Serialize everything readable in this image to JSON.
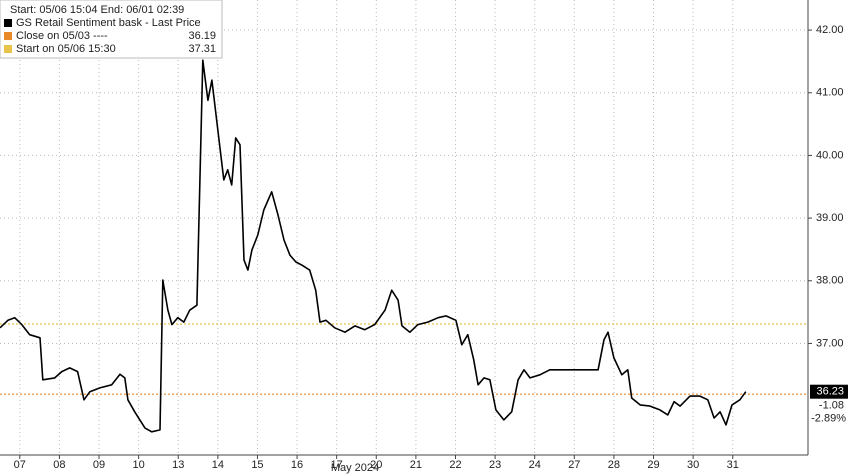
{
  "chart_data": {
    "type": "line",
    "subtitle": "Start: 05/06 15:04 End: 06/01 02:39",
    "x_label": "May 2024",
    "xlim": [
      -0.5,
      19.9
    ],
    "xticks": [
      {
        "value": 0,
        "label": "07"
      },
      {
        "value": 1,
        "label": "08"
      },
      {
        "value": 2,
        "label": "09"
      },
      {
        "value": 3,
        "label": "10"
      },
      {
        "value": 4,
        "label": "13"
      },
      {
        "value": 5,
        "label": "14"
      },
      {
        "value": 6,
        "label": "15"
      },
      {
        "value": 7,
        "label": "16"
      },
      {
        "value": 8,
        "label": "17"
      },
      {
        "value": 9,
        "label": "20"
      },
      {
        "value": 10,
        "label": "21"
      },
      {
        "value": 11,
        "label": "22"
      },
      {
        "value": 12,
        "label": "23"
      },
      {
        "value": 13,
        "label": "24"
      },
      {
        "value": 14,
        "label": "27"
      },
      {
        "value": 15,
        "label": "28"
      },
      {
        "value": 16,
        "label": "29"
      },
      {
        "value": 17,
        "label": "30"
      },
      {
        "value": 18,
        "label": "31"
      }
    ],
    "ylim": [
      35.22,
      42.48
    ],
    "yticks": [
      {
        "value": 37,
        "label": "37.00"
      },
      {
        "value": 38,
        "label": "38.00"
      },
      {
        "value": 39,
        "label": "39.00"
      },
      {
        "value": 40,
        "label": "40.00"
      },
      {
        "value": 41,
        "label": "41.00"
      },
      {
        "value": 42,
        "label": "42.00"
      }
    ],
    "grid": true,
    "series": [
      {
        "name": "GS Retail Sentiment bask - Last Price",
        "color": "#000000",
        "x": [
          -0.5,
          -0.3,
          -0.13,
          0.05,
          0.25,
          0.51,
          0.58,
          0.88,
          1.06,
          1.26,
          1.46,
          1.62,
          1.77,
          2.02,
          2.32,
          2.53,
          2.65,
          2.73,
          2.9,
          3.16,
          3.33,
          3.54,
          3.61,
          3.74,
          3.84,
          3.99,
          4.14,
          4.29,
          4.47,
          4.62,
          4.75,
          4.85,
          5.0,
          5.15,
          5.25,
          5.35,
          5.45,
          5.56,
          5.66,
          5.76,
          5.86,
          6.01,
          6.16,
          6.36,
          6.52,
          6.67,
          6.82,
          6.97,
          7.12,
          7.32,
          7.47,
          7.58,
          7.73,
          7.95,
          8.21,
          8.46,
          8.71,
          8.96,
          9.22,
          9.39,
          9.55,
          9.65,
          9.85,
          10.05,
          10.3,
          10.56,
          10.76,
          11.01,
          11.16,
          11.31,
          11.46,
          11.57,
          11.72,
          11.87,
          12.02,
          12.22,
          12.42,
          12.58,
          12.73,
          12.88,
          13.13,
          13.38,
          13.64,
          14.14,
          14.6,
          14.75,
          14.85,
          15.0,
          15.2,
          15.35,
          15.45,
          15.66,
          15.91,
          16.16,
          16.36,
          16.52,
          16.67,
          16.92,
          17.17,
          17.37,
          17.53,
          17.68,
          17.83,
          17.98,
          18.18,
          18.33
        ],
        "values": [
          37.25,
          37.37,
          37.41,
          37.3,
          37.14,
          37.09,
          36.42,
          36.45,
          36.55,
          36.61,
          36.55,
          36.1,
          36.23,
          36.29,
          36.34,
          36.51,
          36.45,
          36.1,
          35.91,
          35.65,
          35.59,
          35.62,
          38.01,
          37.53,
          37.3,
          37.41,
          37.34,
          37.53,
          37.61,
          41.52,
          40.88,
          41.2,
          40.41,
          39.61,
          39.77,
          39.53,
          40.28,
          40.17,
          38.33,
          38.17,
          38.49,
          38.73,
          39.13,
          39.42,
          39.05,
          38.65,
          38.41,
          38.3,
          38.25,
          38.17,
          37.85,
          37.34,
          37.37,
          37.25,
          37.18,
          37.28,
          37.22,
          37.3,
          37.53,
          37.85,
          37.69,
          37.28,
          37.18,
          37.3,
          37.34,
          37.41,
          37.44,
          37.37,
          36.98,
          37.14,
          36.74,
          36.34,
          36.45,
          36.42,
          35.94,
          35.78,
          35.91,
          36.42,
          36.58,
          36.45,
          36.5,
          36.58,
          36.58,
          36.58,
          36.58,
          37.06,
          37.18,
          36.77,
          36.5,
          36.58,
          36.13,
          36.02,
          36.0,
          35.94,
          35.86,
          36.07,
          36.0,
          36.16,
          36.16,
          36.1,
          35.81,
          35.91,
          35.7,
          36.02,
          36.1,
          36.23
        ]
      }
    ],
    "reference_lines": [
      {
        "label": "Close on 05/03 ----",
        "value": 36.19,
        "color": "#e8892b"
      },
      {
        "label": "Start on 05/06 15:30",
        "value": 37.31,
        "color": "#e8c44a"
      }
    ],
    "last_value": 36.23,
    "change": "-1.08",
    "change_pct": "-2.89%"
  }
}
